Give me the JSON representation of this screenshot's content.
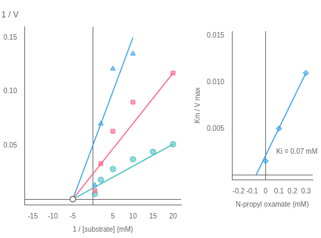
{
  "chart_data": [
    {
      "type": "scatter",
      "title": "1 / V",
      "xlabel": "1 / [substrate] (mM)",
      "xlim": [
        -17,
        22
      ],
      "ylim": [
        -0.005,
        0.16
      ],
      "xticks": [
        -15,
        -10,
        -5,
        {
          "value": 0,
          "label": null
        },
        5,
        10,
        15,
        20
      ],
      "yticks": [
        0.05,
        {
          "value": 0.1,
          "label": "0.10"
        },
        0.15
      ],
      "grid": false,
      "series": [
        {
          "marker": "triangle",
          "x": [
            0.5,
            2,
            5,
            10
          ],
          "values": [
            0.013,
            0.07,
            0.121,
            0.135
          ],
          "line_x": [
            -5,
            10
          ],
          "line_values": [
            0.0,
            0.15
          ]
        },
        {
          "marker": "square",
          "x": [
            0.5,
            2,
            5,
            10,
            20
          ],
          "values": [
            0.008,
            0.033,
            0.063,
            0.09,
            0.117
          ],
          "line_x": [
            -5,
            20
          ],
          "line_values": [
            0.0,
            0.117
          ]
        },
        {
          "marker": "circle",
          "x": [
            0.5,
            2,
            5,
            10,
            15,
            20
          ],
          "values": [
            0.005,
            0.018,
            0.028,
            0.037,
            0.044,
            0.051
          ],
          "line_x": [
            -5,
            20
          ],
          "line_values": [
            0.0,
            0.051
          ]
        }
      ],
      "convergence": {
        "x": -5.0,
        "y": 0.0
      }
    },
    {
      "type": "scatter",
      "xlabel": "N-propyl oxamate (mM)",
      "ylabel": "Km / V max",
      "xlim": [
        -0.25,
        0.35
      ],
      "ylim": [
        -0.0005,
        0.0155
      ],
      "xticks": [
        -0.2,
        -0.1,
        0,
        0.1,
        0.2,
        0.3
      ],
      "yticks": [
        0.005,
        {
          "value": 0.01,
          "label": "0.010"
        },
        0.015
      ],
      "grid": false,
      "series": [
        {
          "marker": "diamond",
          "x": [
            0.0,
            0.1,
            0.3
          ],
          "values": [
            0.0015,
            0.005,
            0.011
          ],
          "line_x": [
            -0.07,
            0.3
          ],
          "line_values": [
            0.0,
            0.011
          ]
        }
      ],
      "annotations": [
        {
          "text": "Ki = 0.07 mM",
          "x": 0.08,
          "y": 0.003
        }
      ]
    }
  ]
}
